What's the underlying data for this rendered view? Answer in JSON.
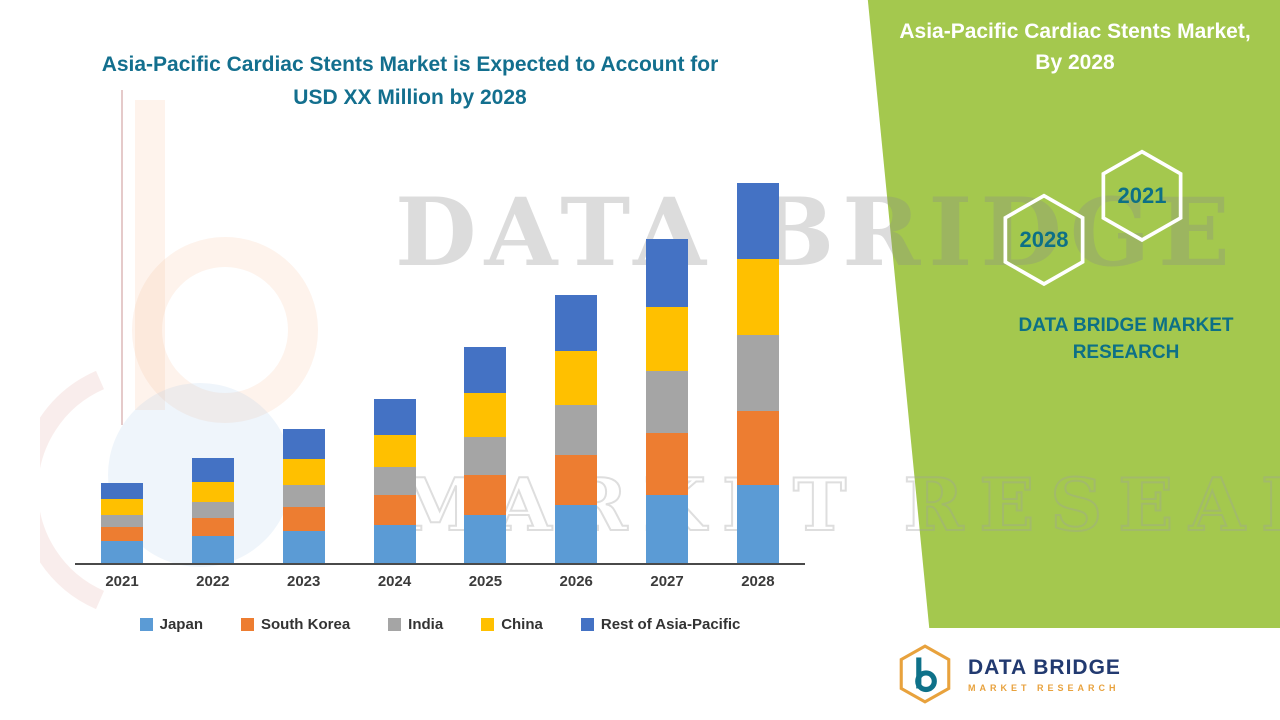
{
  "page": {
    "main_title_line1": "Asia-Pacific Cardiac Stents Market is Expected to Account for",
    "main_title_line2": "USD XX Million by 2028"
  },
  "side_panel": {
    "background_color": "#A4C84E",
    "title_line1": "Asia-Pacific Cardiac Stents Market,",
    "title_line2": "By 2028",
    "hexagons": [
      {
        "label": "2028"
      },
      {
        "label": "2021"
      }
    ],
    "brand_line1": "DATA BRIDGE MARKET",
    "brand_line2": "RESEARCH",
    "accent_color": "#0D7086"
  },
  "watermark": {
    "line1": "DATA BRIDGE",
    "line2": "MARKET RESEARCH"
  },
  "footer": {
    "brand_name": "DATA BRIDGE",
    "brand_subtitle": "MARKET RESEARCH",
    "name_color": "#223A70",
    "subtitle_color": "#E8A23D"
  },
  "chart_data": {
    "type": "bar",
    "stacked": true,
    "title": "Asia-Pacific Cardiac Stents Market",
    "xlabel": "",
    "ylabel": "",
    "value_note": "y-axis unlabeled in source (USD XX Million); values are relative estimates",
    "ylim": [
      0,
      400
    ],
    "grid": false,
    "legend_position": "bottom",
    "categories": [
      "2021",
      "2022",
      "2023",
      "2024",
      "2025",
      "2026",
      "2027",
      "2028"
    ],
    "series": [
      {
        "name": "Japan",
        "color": "#5B9BD5",
        "values": [
          22,
          27,
          32,
          38,
          48,
          58,
          68,
          78
        ]
      },
      {
        "name": "South Korea",
        "color": "#ED7D31",
        "values": [
          14,
          18,
          24,
          30,
          40,
          50,
          62,
          74
        ]
      },
      {
        "name": "India",
        "color": "#A5A5A5",
        "values": [
          12,
          16,
          22,
          28,
          38,
          50,
          62,
          76
        ]
      },
      {
        "name": "China",
        "color": "#FFC000",
        "values": [
          16,
          20,
          26,
          32,
          44,
          54,
          64,
          76
        ]
      },
      {
        "name": "Rest of Asia-Pacific",
        "color": "#4472C4",
        "values": [
          16,
          24,
          30,
          36,
          46,
          56,
          68,
          76
        ]
      }
    ]
  }
}
